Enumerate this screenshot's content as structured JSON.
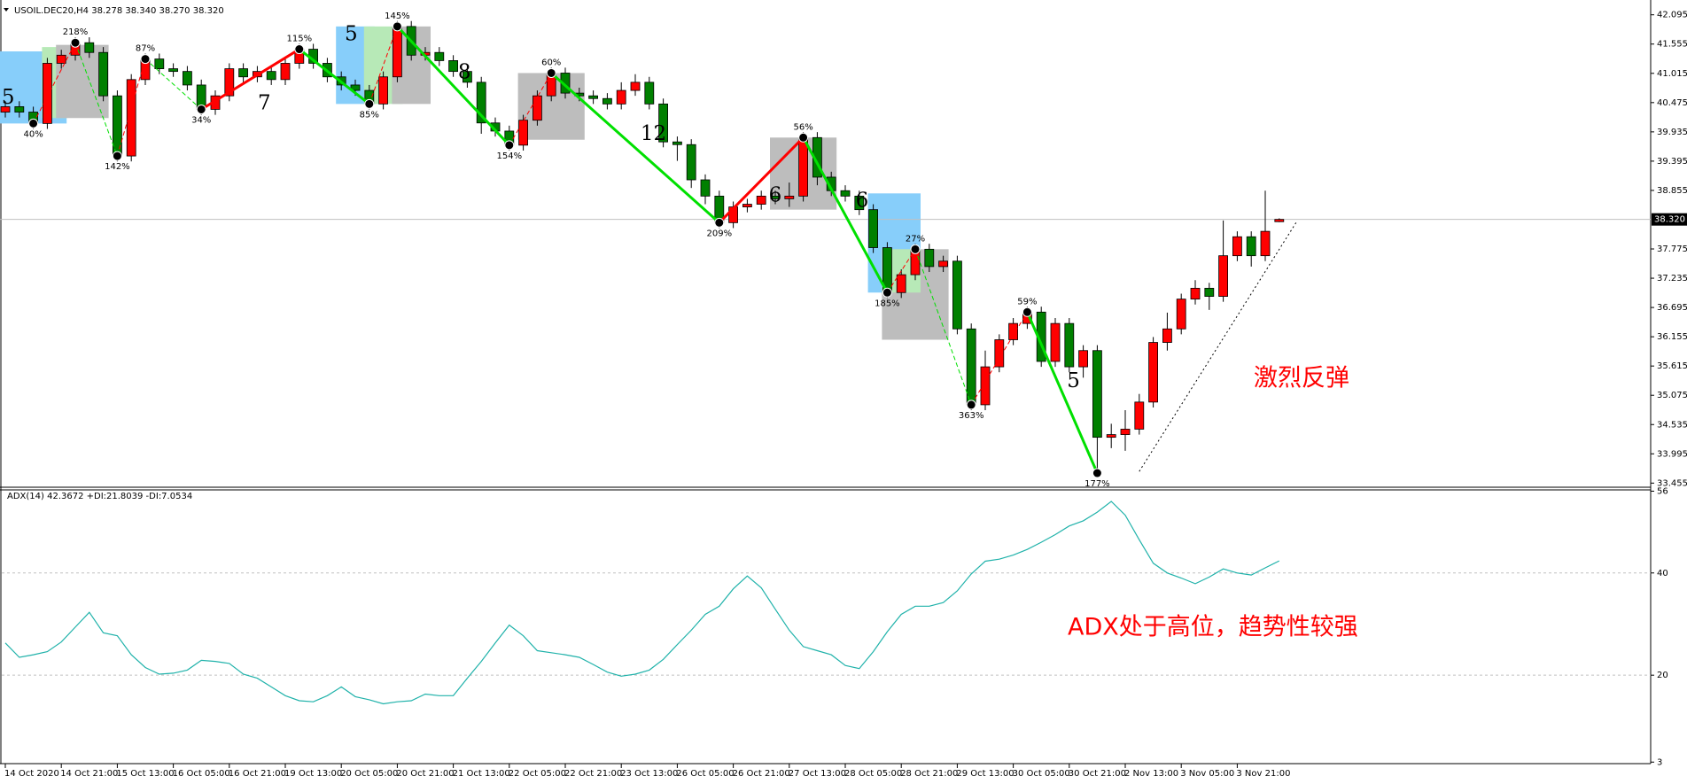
{
  "chart_data": [
    {
      "type": "candlestick",
      "title": "USOIL.DEC20,H4  38.278 38.340 38.270 38.320",
      "categories": [
        "14 Oct 2020",
        null,
        null,
        null,
        "14 Oct 21:00",
        null,
        null,
        null,
        "15 Oct 13:00",
        null,
        null,
        null,
        "16 Oct 05:00",
        null,
        null,
        null,
        "16 Oct 21:00",
        null,
        null,
        null,
        "19 Oct 13:00",
        null,
        null,
        null,
        "20 Oct 05:00",
        null,
        null,
        null,
        "20 Oct 21:00",
        null,
        null,
        null,
        "21 Oct 13:00",
        null,
        null,
        null,
        "22 Oct 05:00",
        null,
        null,
        null,
        "22 Oct 21:00",
        null,
        null,
        null,
        "23 Oct 13:00",
        null,
        null,
        null,
        "26 Oct 05:00",
        null,
        null,
        null,
        "26 Oct 21:00",
        null,
        null,
        null,
        "27 Oct 13:00",
        null,
        null,
        null,
        "28 Oct 05:00",
        null,
        null,
        null,
        "28 Oct 21:00",
        null,
        null,
        null,
        "29 Oct 13:00",
        null,
        null,
        null,
        "30 Oct 05:00",
        null,
        null,
        null,
        "30 Oct 21:00",
        null,
        null,
        null,
        "2 Nov 13:00",
        null,
        null,
        null,
        "3 Nov 05:00",
        null,
        null,
        null,
        "3 Nov 21:00",
        null,
        null,
        null
      ],
      "open": [
        40.3,
        40.4,
        40.3,
        40.09,
        41.2,
        41.35,
        41.58,
        41.4,
        40.6,
        39.49,
        40.9,
        41.28,
        41.1,
        41.05,
        40.8,
        40.35,
        40.6,
        41.1,
        40.95,
        41.05,
        40.9,
        41.2,
        41.46,
        41.2,
        40.95,
        40.8,
        40.7,
        40.45,
        40.95,
        41.88,
        41.35,
        41.4,
        41.25,
        41.05,
        40.85,
        40.1,
        39.95,
        39.69,
        40.15,
        40.6,
        41.02,
        40.65,
        40.6,
        40.55,
        40.45,
        40.7,
        40.85,
        40.45,
        39.75,
        39.7,
        39.05,
        38.75,
        38.26,
        38.55,
        38.6,
        38.75,
        38.7,
        38.75,
        39.83,
        39.1,
        38.85,
        38.75,
        38.5,
        37.8,
        36.97,
        37.3,
        37.77,
        37.45,
        37.55,
        36.3,
        34.9,
        35.6,
        36.1,
        36.4,
        36.61,
        35.7,
        36.4,
        35.6,
        35.9,
        34.3,
        34.35,
        34.45,
        34.95,
        36.05,
        36.3,
        36.85,
        37.05,
        36.9,
        37.65,
        38.0,
        37.65,
        38.278
      ],
      "high": [
        40.5,
        40.5,
        40.4,
        41.3,
        41.45,
        41.68,
        41.68,
        41.5,
        40.7,
        41.0,
        41.38,
        41.38,
        41.2,
        41.15,
        40.9,
        40.7,
        41.2,
        41.2,
        41.15,
        41.15,
        41.3,
        41.56,
        41.56,
        41.3,
        41.05,
        40.9,
        40.8,
        41.05,
        41.98,
        41.98,
        41.5,
        41.5,
        41.35,
        41.15,
        40.95,
        40.2,
        40.05,
        40.25,
        40.7,
        41.12,
        41.12,
        40.75,
        40.7,
        40.65,
        40.85,
        41.0,
        40.95,
        40.55,
        39.85,
        39.8,
        39.15,
        38.85,
        38.65,
        38.7,
        38.85,
        38.85,
        39.0,
        39.93,
        39.93,
        39.2,
        38.95,
        38.85,
        38.6,
        37.9,
        37.4,
        37.87,
        37.87,
        37.65,
        37.65,
        36.4,
        35.9,
        36.2,
        36.5,
        36.71,
        36.71,
        36.5,
        36.5,
        36.0,
        36.0,
        34.55,
        34.8,
        35.1,
        36.15,
        36.6,
        36.95,
        37.2,
        37.15,
        38.3,
        38.1,
        38.1,
        38.85,
        38.34
      ],
      "low": [
        40.2,
        40.2,
        39.99,
        39.99,
        41.1,
        41.25,
        41.3,
        40.5,
        39.39,
        39.39,
        40.8,
        41.0,
        40.95,
        40.7,
        40.25,
        40.25,
        40.5,
        40.85,
        40.85,
        40.8,
        40.8,
        41.1,
        41.1,
        40.85,
        40.7,
        40.6,
        40.35,
        40.35,
        40.85,
        41.25,
        41.25,
        41.15,
        40.95,
        40.75,
        39.9,
        39.85,
        39.59,
        39.59,
        40.05,
        40.5,
        40.55,
        40.5,
        40.45,
        40.35,
        40.35,
        40.6,
        40.35,
        39.65,
        39.4,
        38.9,
        38.6,
        38.16,
        38.16,
        38.45,
        38.5,
        38.6,
        38.55,
        38.65,
        38.95,
        38.75,
        38.65,
        38.4,
        37.7,
        36.87,
        36.87,
        37.2,
        37.35,
        37.35,
        36.2,
        34.8,
        34.8,
        35.5,
        36.0,
        36.3,
        35.6,
        35.6,
        35.5,
        35.4,
        33.64,
        34.1,
        34.05,
        34.35,
        34.85,
        35.9,
        36.2,
        36.75,
        36.65,
        36.8,
        37.55,
        37.45,
        37.55,
        38.27
      ],
      "close": [
        40.4,
        40.3,
        40.09,
        41.2,
        41.35,
        41.58,
        41.4,
        40.6,
        39.49,
        40.9,
        41.28,
        41.1,
        41.05,
        40.8,
        40.35,
        40.6,
        41.1,
        40.95,
        41.05,
        40.9,
        41.2,
        41.46,
        41.2,
        40.95,
        40.8,
        40.7,
        40.45,
        40.95,
        41.88,
        41.35,
        41.4,
        41.25,
        41.05,
        40.85,
        40.1,
        39.95,
        39.69,
        40.15,
        40.6,
        41.02,
        40.65,
        40.6,
        40.55,
        40.45,
        40.7,
        40.85,
        40.45,
        39.75,
        39.7,
        39.05,
        38.75,
        38.26,
        38.55,
        38.6,
        38.75,
        38.7,
        38.75,
        39.83,
        39.1,
        38.85,
        38.75,
        38.5,
        37.8,
        36.97,
        37.3,
        37.77,
        37.45,
        37.55,
        36.3,
        34.9,
        35.6,
        36.1,
        36.4,
        36.61,
        35.7,
        36.4,
        35.6,
        35.9,
        34.3,
        34.35,
        34.45,
        34.95,
        36.05,
        36.3,
        36.85,
        37.05,
        36.9,
        37.65,
        38.0,
        37.65,
        38.1,
        38.32
      ],
      "up_color": "#ff0000",
      "down_color": "#008000",
      "ylim": [
        33.395,
        42.27
      ],
      "yticks": [
        42.095,
        41.555,
        41.015,
        40.475,
        39.935,
        39.395,
        38.855,
        37.775,
        37.235,
        36.695,
        36.155,
        35.615,
        35.075,
        34.535,
        33.995,
        33.455
      ],
      "current_price": {
        "value": 38.32,
        "label": "38.320"
      },
      "zones": [
        {
          "from": 0,
          "to": 4,
          "top": 41.42,
          "bottom": 40.09,
          "color": "#87cefa"
        },
        {
          "from": 3,
          "to": 4,
          "top": 41.5,
          "bottom": 40.19,
          "color": "#b7e9b7"
        },
        {
          "from": 4,
          "to": 7,
          "top": 41.54,
          "bottom": 40.19,
          "color": "#bdbdbd"
        },
        {
          "from": 24,
          "to": 26,
          "top": 41.88,
          "bottom": 40.45,
          "color": "#87cefa"
        },
        {
          "from": 26,
          "to": 28,
          "top": 41.88,
          "bottom": 40.45,
          "color": "#b7e9b7"
        },
        {
          "from": 28,
          "to": 30,
          "top": 41.88,
          "bottom": 40.45,
          "color": "#bdbdbd"
        },
        {
          "from": 37,
          "to": 41,
          "top": 41.02,
          "bottom": 39.79,
          "color": "#bdbdbd"
        },
        {
          "from": 55,
          "to": 59,
          "top": 39.83,
          "bottom": 38.5,
          "color": "#bdbdbd"
        },
        {
          "from": 62,
          "to": 65,
          "top": 38.8,
          "bottom": 36.97,
          "color": "#87cefa"
        },
        {
          "from": 63,
          "to": 67,
          "top": 37.77,
          "bottom": 36.1,
          "color": "#bdbdbd"
        },
        {
          "from": 63,
          "to": 65,
          "top": 37.77,
          "bottom": 36.97,
          "color": "#b7e9b7"
        }
      ],
      "zigzag": [
        {
          "x": 2,
          "y": 40.09,
          "label": "40%",
          "solid": false
        },
        {
          "x": 5,
          "y": 41.58,
          "label": "218%",
          "solid": false
        },
        {
          "x": 8,
          "y": 39.49,
          "label": "142%",
          "solid": false
        },
        {
          "x": 10,
          "y": 41.28,
          "label": "87%",
          "solid": false
        },
        {
          "x": 14,
          "y": 40.35,
          "label": "34%",
          "solid": false
        },
        {
          "x": 21,
          "y": 41.46,
          "label": "115%",
          "solid": true
        },
        {
          "x": 26,
          "y": 40.45,
          "label": "85%",
          "solid": true
        },
        {
          "x": 28,
          "y": 41.88,
          "label": "145%",
          "solid": false
        },
        {
          "x": 36,
          "y": 39.69,
          "label": "154%",
          "solid": true
        },
        {
          "x": 39,
          "y": 41.02,
          "label": "60%",
          "solid": false
        },
        {
          "x": 51,
          "y": 38.26,
          "label": "209%",
          "solid": true
        },
        {
          "x": 57,
          "y": 39.83,
          "label": "56%",
          "solid": true
        },
        {
          "x": 63,
          "y": 36.97,
          "label": "185%",
          "solid": true
        },
        {
          "x": 65,
          "y": 37.77,
          "label": "27%",
          "solid": false
        },
        {
          "x": 69,
          "y": 34.9,
          "label": "363%",
          "solid": false
        },
        {
          "x": 73,
          "y": 36.61,
          "label": "59%",
          "solid": false
        },
        {
          "x": 78,
          "y": 33.64,
          "label": "177%",
          "solid": true
        }
      ],
      "wave_labels": [
        {
          "x": 0.2,
          "y": 40.55,
          "label": "5"
        },
        {
          "x": 18.5,
          "y": 40.45,
          "label": "7"
        },
        {
          "x": 24.7,
          "y": 41.72,
          "label": "5"
        },
        {
          "x": 32.8,
          "y": 41.02,
          "label": "8"
        },
        {
          "x": 46.3,
          "y": 39.88,
          "label": "12"
        },
        {
          "x": 55,
          "y": 38.75,
          "label": "6"
        },
        {
          "x": 61.2,
          "y": 38.65,
          "label": "6"
        },
        {
          "x": 76.3,
          "y": 35.32,
          "label": "5"
        }
      ],
      "trendline": {
        "from": [
          81,
          33.67
        ],
        "to": [
          92.2,
          38.26
        ]
      },
      "annotation": "激烈反弹"
    },
    {
      "type": "line",
      "title": "ADX(14) 42.3672 +DI:21.8039 -DI:7.0534",
      "color": "#20b2aa",
      "values": [
        26.3,
        23.5,
        24.0,
        24.6,
        26.5,
        29.4,
        32.3,
        28.3,
        27.7,
        24.0,
        21.5,
        20.2,
        20.4,
        21.0,
        22.9,
        22.7,
        22.3,
        20.2,
        19.4,
        17.7,
        16.0,
        15.0,
        14.8,
        16.0,
        17.7,
        15.8,
        15.2,
        14.4,
        14.8,
        15.0,
        16.3,
        16.0,
        16.0,
        19.4,
        22.7,
        26.3,
        29.8,
        27.7,
        24.8,
        24.4,
        24.0,
        23.5,
        22.1,
        20.6,
        19.8,
        20.2,
        21.0,
        23.1,
        26.0,
        28.8,
        31.9,
        33.5,
        36.9,
        39.4,
        37.1,
        32.9,
        28.8,
        25.6,
        24.8,
        24.0,
        21.9,
        21.3,
        24.6,
        28.5,
        31.9,
        33.5,
        33.5,
        34.2,
        36.5,
        39.8,
        42.3,
        42.7,
        43.5,
        44.6,
        46.0,
        47.5,
        49.2,
        50.2,
        51.9,
        54.0,
        51.3,
        46.5,
        41.9,
        40.0,
        39.0,
        37.9,
        39.2,
        40.8,
        40.0,
        39.6,
        41.0,
        42.37
      ],
      "ylim": [
        2.7,
        56.25
      ],
      "yticks": [
        56,
        40,
        20,
        3
      ],
      "annotation": "ADX处于高位，趋势性较强"
    }
  ]
}
